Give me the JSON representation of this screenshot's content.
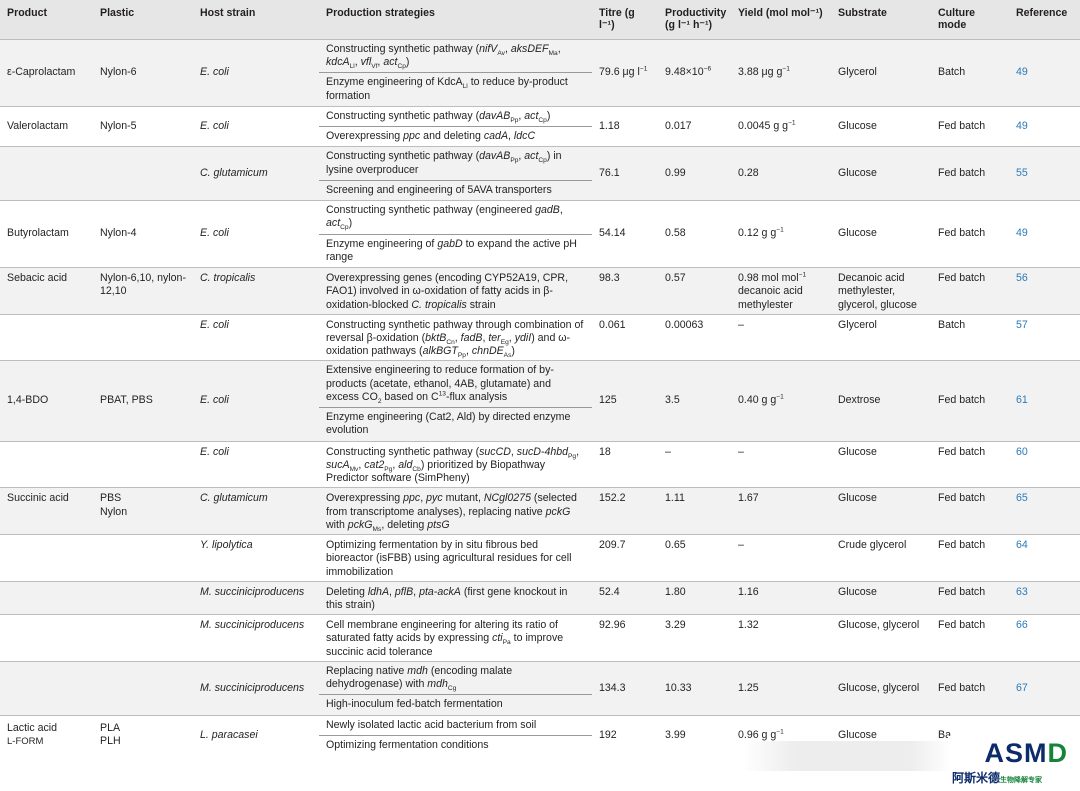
{
  "headers": {
    "product": "Product",
    "plastic": "Plastic",
    "host": "Host strain",
    "strategies": "Production strategies",
    "titre": "Titre (g l⁻¹)",
    "productivity_line1": "Productivity",
    "productivity_line2": "(g l⁻¹ h⁻¹)",
    "yield": "Yield (mol mol⁻¹)",
    "substrate": "Substrate",
    "culture": "Culture mode",
    "reference": "Reference"
  },
  "rows": [
    {
      "product": "ε-Caprolactam",
      "plastic": "Nylon-6",
      "host": "E. coli",
      "strategies": [
        "Constructing synthetic pathway (nifV_Av, aksDEF_Ma, kdcA_Ll, vfl_Vf, act_Cp)",
        "Enzyme engineering of KdcA_Ll to reduce by-product formation"
      ],
      "titre": "79.6 μg l⁻¹",
      "productivity": "9.48×10⁻⁶",
      "yield": "3.88 μg g⁻¹",
      "substrate": "Glycerol",
      "culture": "Batch",
      "reference": "49"
    },
    {
      "product": "Valerolactam",
      "plastic": "Nylon-5",
      "host": "E. coli",
      "strategies": [
        "Constructing synthetic pathway (davAB_Pp, act_Cp)",
        "Overexpressing ppc and deleting cadA, ldcC"
      ],
      "titre": "1.18",
      "productivity": "0.017",
      "yield": "0.0045 g g⁻¹",
      "substrate": "Glucose",
      "culture": "Fed batch",
      "reference": "49"
    },
    {
      "product": "",
      "plastic": "",
      "host": "C. glutamicum",
      "strategies": [
        "Constructing synthetic pathway (davAB_Pp, act_Cp) in lysine overproducer",
        "Screening and engineering of 5AVA transporters"
      ],
      "titre": "76.1",
      "productivity": "0.99",
      "yield": "0.28",
      "substrate": "Glucose",
      "culture": "Fed batch",
      "reference": "55"
    },
    {
      "product": "Butyrolactam",
      "plastic": "Nylon-4",
      "host": "E. coli",
      "strategies": [
        "Constructing synthetic pathway (engineered gadB, act_Cp)",
        "Enzyme engineering of gabD to expand the active pH range"
      ],
      "titre": "54.14",
      "productivity": "0.58",
      "yield": "0.12 g g⁻¹",
      "substrate": "Glucose",
      "culture": "Fed batch",
      "reference": "49"
    },
    {
      "product": "Sebacic acid",
      "plastic": "Nylon-6,10, nylon-12,10",
      "host": "C. tropicalis",
      "strategies": [
        "Overexpressing genes (encoding CYP52A19, CPR, FAO1) involved in ω-oxidation of fatty acids in β-oxidation-blocked C. tropicalis strain"
      ],
      "titre": "98.3",
      "productivity": "0.57",
      "yield": "0.98 mol mol⁻¹ decanoic acid methylester",
      "substrate": "Decanoic acid methylester, glycerol, glucose",
      "culture": "Fed batch",
      "reference": "56"
    },
    {
      "product": "",
      "plastic": "",
      "host": "E. coli",
      "strategies": [
        "Constructing synthetic pathway through combination of reversal β-oxidation (bktB_Cn, fadB, ter_Eg, ydiI) and ω-oxidation pathways (alkBGT_Pp, chnDE_As)"
      ],
      "titre": "0.061",
      "productivity": "0.00063",
      "yield": "–",
      "substrate": "Glycerol",
      "culture": "Batch",
      "reference": "57"
    },
    {
      "product": "1,4-BDO",
      "plastic": "PBAT, PBS",
      "host": "E. coli",
      "strategies": [
        "Extensive engineering to reduce formation of by-products (acetate, ethanol, 4AB, glutamate) and excess CO2 based on C13-flux analysis",
        "Enzyme engineering (Cat2, Ald) by directed enzyme evolution"
      ],
      "titre": "125",
      "productivity": "3.5",
      "yield": "0.40 g g⁻¹",
      "substrate": "Dextrose",
      "culture": "Fed batch",
      "reference": "61"
    },
    {
      "product": "",
      "plastic": "",
      "host": "E. coli",
      "strategies": [
        "Constructing synthetic pathway (sucCD, sucD-4hbd_Pg, sucA_Mv, cat2_Pg, ald_Cb) prioritized by Biopathway Predictor software (SimPheny)"
      ],
      "titre": "18",
      "productivity": "–",
      "yield": "–",
      "substrate": "Glucose",
      "culture": "Fed batch",
      "reference": "60"
    },
    {
      "product": "Succinic acid",
      "plastic": "PBS Nylon",
      "host": "C. glutamicum",
      "strategies": [
        "Overexpressing ppc, pyc mutant, NCgl0275 (selected from transcriptome analyses), replacing native pckG with pckG_Ms, deleting ptsG"
      ],
      "titre": "152.2",
      "productivity": "1.11",
      "yield": "1.67",
      "substrate": "Glucose",
      "culture": "Fed batch",
      "reference": "65"
    },
    {
      "product": "",
      "plastic": "",
      "host": "Y. lipolytica",
      "strategies": [
        "Optimizing fermentation by in situ fibrous bed bioreactor (isFBB) using agricultural residues for cell immobilization"
      ],
      "titre": "209.7",
      "productivity": "0.65",
      "yield": "–",
      "substrate": "Crude glycerol",
      "culture": "Fed batch",
      "reference": "64"
    },
    {
      "product": "",
      "plastic": "",
      "host": "M. succiniciproducens",
      "strategies": [
        "Deleting ldhA, pflB, pta-ackA (first gene knockout in this strain)"
      ],
      "titre": "52.4",
      "productivity": "1.80",
      "yield": "1.16",
      "substrate": "Glucose",
      "culture": "Fed batch",
      "reference": "63"
    },
    {
      "product": "",
      "plastic": "",
      "host": "M. succiniciproducens",
      "strategies": [
        "Cell membrane engineering for altering its ratio of saturated fatty acids by expressing cti_Pa to improve succinic acid tolerance"
      ],
      "titre": "92.96",
      "productivity": "3.29",
      "yield": "1.32",
      "substrate": "Glucose, glycerol",
      "culture": "Fed batch",
      "reference": "66"
    },
    {
      "product": "",
      "plastic": "",
      "host": "M. succiniciproducens",
      "strategies": [
        "Replacing native mdh (encoding malate dehydrogenase) with mdh_Cg",
        "High-inoculum fed-batch fermentation"
      ],
      "titre": "134.3",
      "productivity": "10.33",
      "yield": "1.25",
      "substrate": "Glucose, glycerol",
      "culture": "Fed batch",
      "reference": "67"
    },
    {
      "product": "Lactic acid L-form",
      "plastic": "PLA PLH",
      "host": "L. paracasei",
      "strategies": [
        "Newly isolated lactic acid bacterium from soil",
        "Optimizing fermentation conditions"
      ],
      "titre": "192",
      "productivity": "3.99",
      "yield": "0.96 g g⁻¹",
      "substrate": "Glucose",
      "culture": "Ba",
      "reference": ""
    }
  ],
  "watermark": {
    "brand": "ASMD",
    "chinese": "阿斯米德",
    "tagline": "生物降解专家"
  }
}
